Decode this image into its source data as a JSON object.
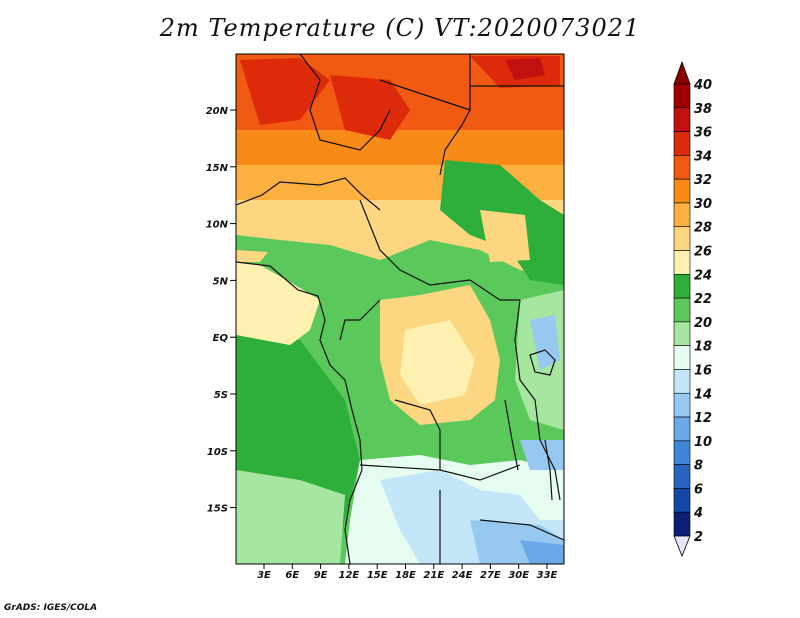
{
  "title": "2m Temperature (C) VT:2020073021",
  "credit": "GrADS: IGES/COLA",
  "map": {
    "lat_ticks": [
      "20N",
      "15N",
      "10N",
      "5N",
      "EQ",
      "5S",
      "10S",
      "15S"
    ],
    "lon_ticks": [
      "3E",
      "6E",
      "9E",
      "12E",
      "15E",
      "18E",
      "21E",
      "24E",
      "27E",
      "30E",
      "33E"
    ]
  },
  "colorbar": {
    "labels": [
      "40",
      "38",
      "36",
      "34",
      "32",
      "30",
      "28",
      "26",
      "24",
      "22",
      "20",
      "18",
      "16",
      "14",
      "12",
      "10",
      "8",
      "6",
      "4",
      "2"
    ],
    "colors": [
      "#a00000",
      "#c01010",
      "#dc2a0a",
      "#f05a12",
      "#f88a18",
      "#fcb040",
      "#fcd680",
      "#fdf0b0",
      "#2eaf3c",
      "#5ac85a",
      "#a6e6a0",
      "#e6fcf0",
      "#c2e6f8",
      "#96c8f0",
      "#6aa8e8",
      "#4086d8",
      "#2864c0",
      "#1448a8",
      "#0a1e7a"
    ],
    "top_arrow_color": "#8c0000",
    "bottom_arrow_color": "#e8e4f8"
  }
}
